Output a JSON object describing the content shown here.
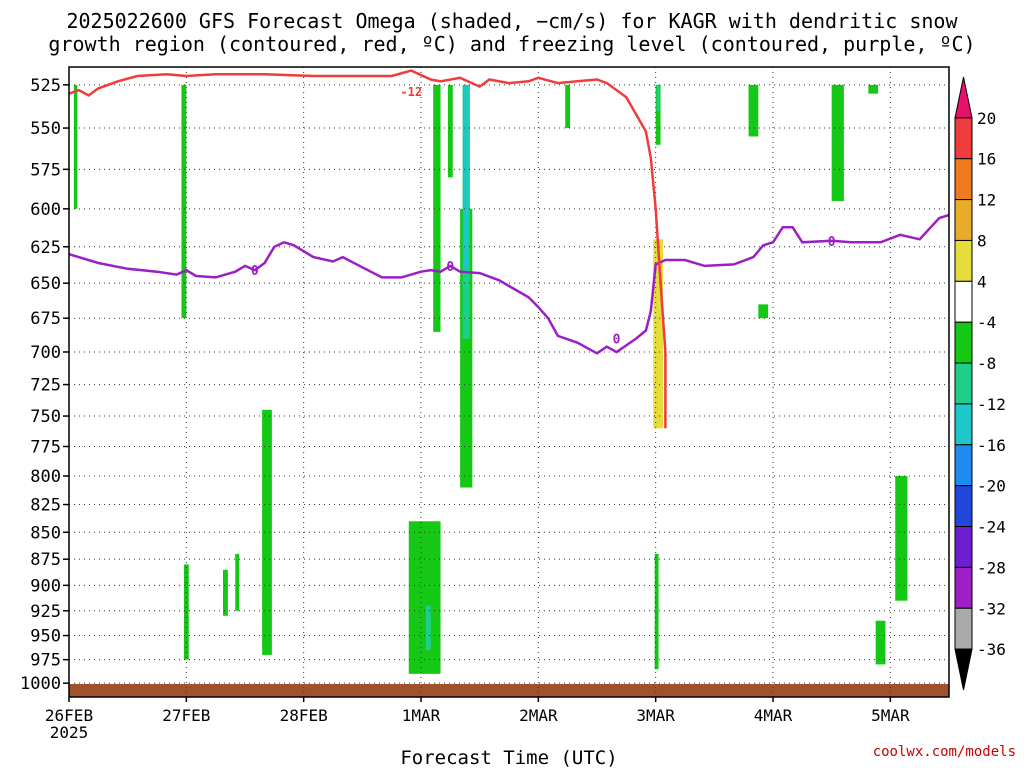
{
  "header": {
    "title_line1": "2025022600 GFS Forecast Omega (shaded, −cm/s) for KAGR with dendritic snow",
    "title_line2": "growth region (contoured, red, ºC) and freezing level (contoured, purple, ºC)"
  },
  "footer": {
    "credit": "coolwx.com/models"
  },
  "chart_data": {
    "type": "heatmap",
    "xlabel": "Forecast Time (UTC)",
    "ylabel": "",
    "x_ticks": [
      {
        "hour": 0,
        "label": "26FEB",
        "sublabel": "2025"
      },
      {
        "hour": 24,
        "label": "27FEB"
      },
      {
        "hour": 48,
        "label": "28FEB"
      },
      {
        "hour": 72,
        "label": "1MAR"
      },
      {
        "hour": 96,
        "label": "2MAR"
      },
      {
        "hour": 120,
        "label": "3MAR"
      },
      {
        "hour": 144,
        "label": "4MAR"
      },
      {
        "hour": 168,
        "label": "5MAR"
      }
    ],
    "xlim": [
      0,
      180
    ],
    "y_ticks": [
      525,
      550,
      575,
      600,
      625,
      650,
      675,
      700,
      725,
      750,
      775,
      800,
      825,
      850,
      875,
      900,
      925,
      950,
      975,
      1000
    ],
    "ylim_hpa": [
      1015,
      515
    ],
    "y_scale": "log-pressure",
    "grid": true,
    "colorbar": {
      "labels": [
        "20",
        "16",
        "12",
        "8",
        "4",
        "-4",
        "-8",
        "-12",
        "-16",
        "-20",
        "-24",
        "-28",
        "-32",
        "-36"
      ],
      "colors": [
        "#e8106e",
        "#f03c3c",
        "#f07a1e",
        "#e8ac28",
        "#e6dc3c",
        "#ffffff",
        "#16c816",
        "#1ecf8c",
        "#1ec8c8",
        "#1e8cf0",
        "#2246dc",
        "#6e1ed2",
        "#a01ec8",
        "#aaaaaa",
        "#000000"
      ]
    },
    "freezing_level": {
      "label": "0",
      "color": "#9b1fc4",
      "points": [
        [
          0,
          630
        ],
        [
          6,
          636
        ],
        [
          12,
          640
        ],
        [
          18,
          642
        ],
        [
          22,
          644
        ],
        [
          24,
          641
        ],
        [
          26,
          645
        ],
        [
          30,
          646
        ],
        [
          34,
          642
        ],
        [
          36,
          638
        ],
        [
          38,
          641
        ],
        [
          40,
          636
        ],
        [
          42,
          625
        ],
        [
          44,
          622
        ],
        [
          46,
          624
        ],
        [
          50,
          632
        ],
        [
          54,
          635
        ],
        [
          56,
          632
        ],
        [
          60,
          639
        ],
        [
          64,
          646
        ],
        [
          68,
          646
        ],
        [
          72,
          642
        ],
        [
          74,
          641
        ],
        [
          76,
          642
        ],
        [
          78,
          638
        ],
        [
          80,
          642
        ],
        [
          84,
          643
        ],
        [
          88,
          648
        ],
        [
          90,
          652
        ],
        [
          94,
          660
        ],
        [
          96,
          667
        ],
        [
          98,
          675
        ],
        [
          100,
          688
        ],
        [
          104,
          693
        ],
        [
          108,
          701
        ],
        [
          110,
          696
        ],
        [
          112,
          700
        ],
        [
          116,
          690
        ],
        [
          118,
          684
        ],
        [
          119,
          670
        ],
        [
          120,
          637
        ],
        [
          122,
          634
        ],
        [
          126,
          634
        ],
        [
          130,
          638
        ],
        [
          136,
          637
        ],
        [
          140,
          632
        ],
        [
          142,
          624
        ],
        [
          144,
          622
        ],
        [
          146,
          612
        ],
        [
          148,
          612
        ],
        [
          150,
          622
        ],
        [
          156,
          621
        ],
        [
          160,
          622
        ],
        [
          166,
          622
        ],
        [
          170,
          617
        ],
        [
          174,
          620
        ],
        [
          178,
          606
        ],
        [
          180,
          604
        ]
      ]
    },
    "dgz_minus12": {
      "label": "-12",
      "color": "#f03c3c",
      "points": [
        [
          0,
          530
        ],
        [
          2,
          528
        ],
        [
          4,
          531
        ],
        [
          6,
          527
        ],
        [
          10,
          523
        ],
        [
          14,
          520
        ],
        [
          20,
          519
        ],
        [
          24,
          520
        ],
        [
          30,
          519
        ],
        [
          40,
          519
        ],
        [
          50,
          520
        ],
        [
          60,
          520
        ],
        [
          66,
          520
        ],
        [
          70,
          517
        ],
        [
          74,
          522
        ],
        [
          76,
          523
        ],
        [
          80,
          521
        ],
        [
          84,
          526
        ],
        [
          86,
          522
        ],
        [
          90,
          524
        ],
        [
          94,
          523
        ],
        [
          96,
          521
        ],
        [
          100,
          524
        ],
        [
          104,
          523
        ],
        [
          108,
          522
        ],
        [
          110,
          524
        ],
        [
          112,
          528
        ],
        [
          114,
          532
        ],
        [
          116,
          542
        ],
        [
          118,
          552
        ],
        [
          119,
          568
        ],
        [
          120,
          600
        ],
        [
          121,
          650
        ],
        [
          122,
          700
        ],
        [
          122,
          760
        ]
      ]
    },
    "omega_regions": [
      {
        "cat": "4",
        "t0": 0.5,
        "t1": 1.5,
        "p0": 525,
        "p1": 940
      },
      {
        "cat": "-4",
        "t0": 1.0,
        "t1": 1.7,
        "p0": 525,
        "p1": 600
      },
      {
        "cat": "4",
        "t0": 6.0,
        "t1": 6.8,
        "p0": 540,
        "p1": 565
      },
      {
        "cat": "4",
        "t0": 21.0,
        "t1": 23.0,
        "p0": 525,
        "p1": 690
      },
      {
        "cat": "-4",
        "t0": 23.0,
        "t1": 24.0,
        "p0": 525,
        "p1": 675
      },
      {
        "cat": "4",
        "t0": 27.5,
        "t1": 28.5,
        "p0": 765,
        "p1": 805
      },
      {
        "cat": "-4",
        "t0": 23.5,
        "t1": 24.5,
        "p0": 880,
        "p1": 975
      },
      {
        "cat": "-4",
        "t0": 31.5,
        "t1": 32.5,
        "p0": 885,
        "p1": 930
      },
      {
        "cat": "-4",
        "t0": 34.0,
        "t1": 34.8,
        "p0": 870,
        "p1": 925
      },
      {
        "cat": "-4",
        "t0": 39.5,
        "t1": 41.5,
        "p0": 745,
        "p1": 970
      },
      {
        "cat": "4",
        "t0": 44.0,
        "t1": 46.5,
        "p0": 690,
        "p1": 860
      },
      {
        "cat": "4",
        "t0": 50.5,
        "t1": 51.5,
        "p0": 525,
        "p1": 560
      },
      {
        "cat": "4",
        "t0": 51.5,
        "t1": 52.2,
        "p0": 560,
        "p1": 625
      },
      {
        "cat": "4",
        "t0": 53.5,
        "t1": 54.3,
        "p0": 545,
        "p1": 590
      },
      {
        "cat": "4",
        "t0": 54.8,
        "t1": 55.5,
        "p0": 890,
        "p1": 945
      },
      {
        "cat": "4",
        "t0": 64.0,
        "t1": 65.0,
        "p0": 650,
        "p1": 675
      },
      {
        "cat": "4",
        "t0": 71.0,
        "t1": 72.0,
        "p0": 525,
        "p1": 650
      },
      {
        "cat": "4",
        "t0": 72.5,
        "t1": 74.5,
        "p0": 525,
        "p1": 830
      },
      {
        "cat": "-4",
        "t0": 74.5,
        "t1": 76.0,
        "p0": 525,
        "p1": 685
      },
      {
        "cat": "4",
        "t0": 76.0,
        "t1": 78.5,
        "p0": 640,
        "p1": 770
      },
      {
        "cat": "-4",
        "t0": 77.5,
        "t1": 78.5,
        "p0": 525,
        "p1": 580
      },
      {
        "cat": "-4",
        "t0": 80.0,
        "t1": 82.5,
        "p0": 600,
        "p1": 810
      },
      {
        "cat": "-8",
        "t0": 80.5,
        "t1": 82.0,
        "p0": 525,
        "p1": 690
      },
      {
        "cat": "-12",
        "t0": 80.8,
        "t1": 81.7,
        "p0": 525,
        "p1": 640
      },
      {
        "cat": "-4",
        "t0": 69.5,
        "t1": 76.0,
        "p0": 840,
        "p1": 990
      },
      {
        "cat": "-8",
        "t0": 73.0,
        "t1": 74.0,
        "p0": 920,
        "p1": 965
      },
      {
        "cat": "4",
        "t0": 85.5,
        "t1": 86.5,
        "p0": 555,
        "p1": 590
      },
      {
        "cat": "4",
        "t0": 86.5,
        "t1": 87.3,
        "p0": 570,
        "p1": 630
      },
      {
        "cat": "4",
        "t0": 89.5,
        "t1": 90.3,
        "p0": 525,
        "p1": 535
      },
      {
        "cat": "-4",
        "t0": 101.5,
        "t1": 102.5,
        "p0": 525,
        "p1": 550
      },
      {
        "cat": "4",
        "t0": 103.5,
        "t1": 104.5,
        "p0": 525,
        "p1": 545
      },
      {
        "cat": "4",
        "t0": 115.5,
        "t1": 119.0,
        "p0": 525,
        "p1": 650
      },
      {
        "cat": "4",
        "t0": 116.5,
        "t1": 119.5,
        "p0": 650,
        "p1": 830
      },
      {
        "cat": "4",
        "t0": 119.0,
        "t1": 122.5,
        "p0": 600,
        "p1": 750
      },
      {
        "cat": "8",
        "t0": 119.5,
        "t1": 121.5,
        "p0": 620,
        "p1": 760
      },
      {
        "cat": "-4",
        "t0": 120.0,
        "t1": 121.0,
        "p0": 525,
        "p1": 560
      },
      {
        "cat": "-8",
        "t0": 120.2,
        "t1": 120.8,
        "p0": 525,
        "p1": 540
      },
      {
        "cat": "-4",
        "t0": 119.8,
        "t1": 120.6,
        "p0": 870,
        "p1": 985
      },
      {
        "cat": "4",
        "t0": 118.0,
        "t1": 119.0,
        "p0": 895,
        "p1": 970
      },
      {
        "cat": "4",
        "t0": 113.0,
        "t1": 114.0,
        "p0": 630,
        "p1": 650
      },
      {
        "cat": "4",
        "t0": 108.0,
        "t1": 108.5,
        "p0": 835,
        "p1": 870
      },
      {
        "cat": "4",
        "t0": 126.0,
        "t1": 128.0,
        "p0": 890,
        "p1": 925
      },
      {
        "cat": "-4",
        "t0": 139.0,
        "t1": 141.0,
        "p0": 525,
        "p1": 555
      },
      {
        "cat": "4",
        "t0": 142.0,
        "t1": 144.0,
        "p0": 525,
        "p1": 530
      },
      {
        "cat": "4",
        "t0": 148.0,
        "t1": 149.5,
        "p0": 525,
        "p1": 535
      },
      {
        "cat": "-4",
        "t0": 141.0,
        "t1": 143.0,
        "p0": 665,
        "p1": 675
      },
      {
        "cat": "4",
        "t0": 139.0,
        "t1": 141.0,
        "p0": 685,
        "p1": 780
      },
      {
        "cat": "4",
        "t0": 141.0,
        "t1": 143.5,
        "p0": 775,
        "p1": 845
      },
      {
        "cat": "-4",
        "t0": 156.0,
        "t1": 158.5,
        "p0": 525,
        "p1": 595
      },
      {
        "cat": "4",
        "t0": 154.0,
        "t1": 156.0,
        "p0": 870,
        "p1": 895
      },
      {
        "cat": "4",
        "t0": 156.0,
        "t1": 158.5,
        "p0": 680,
        "p1": 920
      },
      {
        "cat": "-4",
        "t0": 163.5,
        "t1": 165.5,
        "p0": 525,
        "p1": 530
      },
      {
        "cat": "4",
        "t0": 165.0,
        "t1": 167.0,
        "p0": 620,
        "p1": 690
      },
      {
        "cat": "-4",
        "t0": 165.0,
        "t1": 167.0,
        "p0": 935,
        "p1": 980
      },
      {
        "cat": "-4",
        "t0": 169.0,
        "t1": 171.5,
        "p0": 800,
        "p1": 915
      },
      {
        "cat": "4",
        "t0": 170.0,
        "t1": 172.5,
        "p0": 525,
        "p1": 565
      },
      {
        "cat": "4",
        "t0": 172.5,
        "t1": 175.0,
        "p0": 540,
        "p1": 600
      },
      {
        "cat": "4",
        "t0": 174.5,
        "t1": 177.0,
        "p0": 600,
        "p1": 680
      }
    ]
  }
}
